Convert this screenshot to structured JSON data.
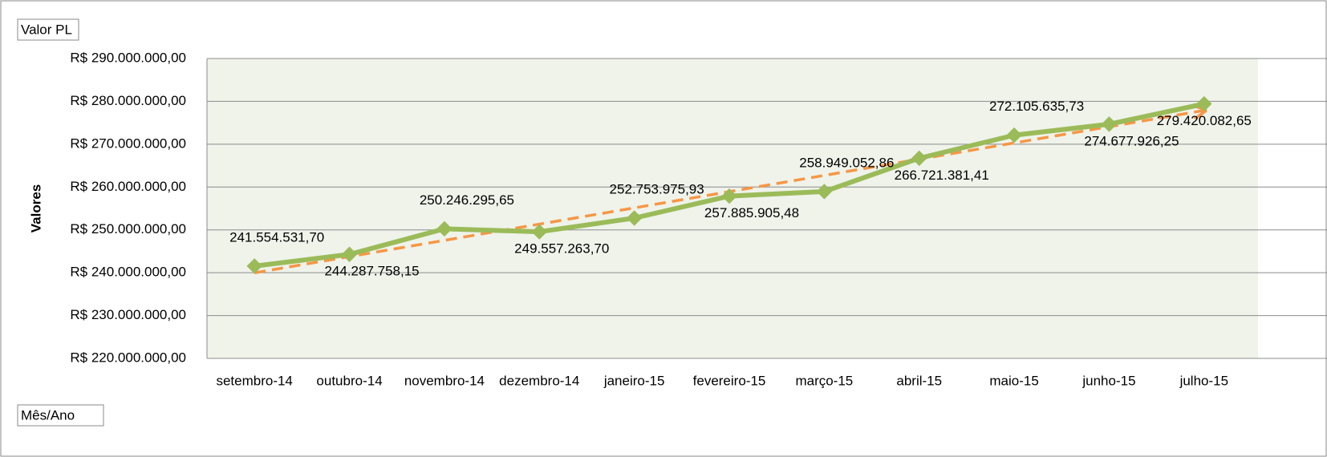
{
  "chart_data": {
    "type": "line",
    "field_buttons": [
      "Valor PL",
      "Mês/Ano"
    ],
    "ylabel": "Valores",
    "categories": [
      "setembro-14",
      "outubro-14",
      "novembro-14",
      "dezembro-14",
      "janeiro-15",
      "fevereiro-15",
      "março-15",
      "abril-15",
      "maio-15",
      "junho-15",
      "julho-15"
    ],
    "series": [
      {
        "color": "#9bbb59",
        "values": [
          241554531.7,
          244287758.15,
          250246295.65,
          249557263.7,
          252753975.93,
          257885905.48,
          258949052.86,
          266721381.41,
          272105635.73,
          274677926.25,
          279420082.65
        ],
        "value_labels": [
          "241.554.531,70",
          "244.287.758,15",
          "250.246.295,65",
          "249.557.263,70",
          "252.753.975,93",
          "257.885.905,48",
          "258.949.052,86",
          "266.721.381,41",
          "272.105.635,73",
          "274.677.926,25",
          "279.420.082,65"
        ]
      }
    ],
    "trendline": {
      "kind": "linear",
      "color": "#f79646"
    },
    "ylim": [
      220000000,
      290000000
    ],
    "yticks": [
      {
        "value": 220000000,
        "label": "R$ 220.000.000,00"
      },
      {
        "value": 230000000,
        "label": "R$ 230.000.000,00"
      },
      {
        "value": 240000000,
        "label": "R$ 240.000.000,00"
      },
      {
        "value": 250000000,
        "label": "R$ 250.000.000,00"
      },
      {
        "value": 260000000,
        "label": "R$ 260.000.000,00"
      },
      {
        "value": 270000000,
        "label": "R$ 270.000.000,00"
      },
      {
        "value": 280000000,
        "label": "R$ 280.000.000,00"
      },
      {
        "value": 290000000,
        "label": "R$ 290.000.000,00"
      }
    ],
    "grid": true,
    "plot_background": "#eff3ea"
  }
}
